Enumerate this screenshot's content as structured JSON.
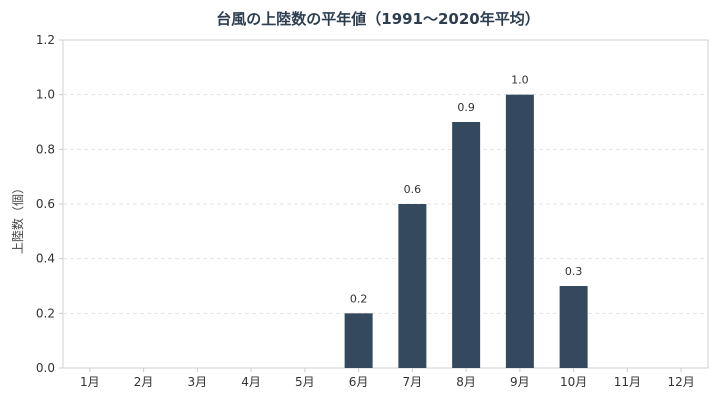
{
  "chart_data": {
    "type": "bar",
    "title": "台風の上陸数の平年値（1991〜2020年平均）",
    "xlabel": "",
    "ylabel": "上陸数（個）",
    "categories": [
      "1月",
      "2月",
      "3月",
      "4月",
      "5月",
      "6月",
      "7月",
      "8月",
      "9月",
      "10月",
      "11月",
      "12月"
    ],
    "values": [
      0,
      0,
      0,
      0,
      0,
      0.2,
      0.6,
      0.9,
      1.0,
      0.3,
      0,
      0
    ],
    "data_labels": [
      "",
      "",
      "",
      "",
      "",
      "0.2",
      "0.6",
      "0.9",
      "1.0",
      "0.3",
      "",
      ""
    ],
    "ylim": [
      0,
      1.2
    ],
    "yticks": [
      "0.0",
      "0.2",
      "0.4",
      "0.6",
      "0.8",
      "1.0",
      "1.2"
    ],
    "ytick_values": [
      0,
      0.2,
      0.4,
      0.6,
      0.8,
      1.0,
      1.2
    ],
    "grid": true,
    "colors": {
      "bar": "#34495e"
    }
  }
}
